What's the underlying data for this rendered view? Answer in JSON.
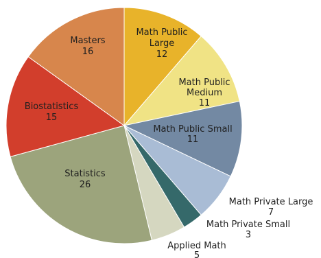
{
  "chart_data": {
    "type": "pie",
    "title": "",
    "start_angle_deg": 0,
    "direction": "clockwise",
    "legend": "none",
    "slices": [
      {
        "label": "Math Public Large",
        "label_lines": [
          "Math Public",
          "Large"
        ],
        "value": 12,
        "color": "#e8b32a"
      },
      {
        "label": "Math Public Medium",
        "label_lines": [
          "Math Public",
          "Medium"
        ],
        "value": 11,
        "color": "#f0e385"
      },
      {
        "label": "Math Public Small",
        "label_lines": [
          "Math Public Small"
        ],
        "value": 11,
        "color": "#7389a3"
      },
      {
        "label": "Math Private Large",
        "label_lines": [
          "Math Private Large"
        ],
        "value": 7,
        "color": "#a9bcd5"
      },
      {
        "label": "Math Private Small",
        "label_lines": [
          "Math Private Small"
        ],
        "value": 3,
        "color": "#35696a"
      },
      {
        "label": "Applied Math",
        "label_lines": [
          "Applied Math"
        ],
        "value": 5,
        "color": "#d5d7c0"
      },
      {
        "label": "Statistics",
        "label_lines": [
          "Statistics"
        ],
        "value": 26,
        "color": "#9ca47c"
      },
      {
        "label": "Biostatistics",
        "label_lines": [
          "Biostatistics"
        ],
        "value": 15,
        "color": "#d23e2c"
      },
      {
        "label": "Masters",
        "label_lines": [
          "Masters"
        ],
        "value": 16,
        "color": "#d7864c"
      }
    ]
  }
}
